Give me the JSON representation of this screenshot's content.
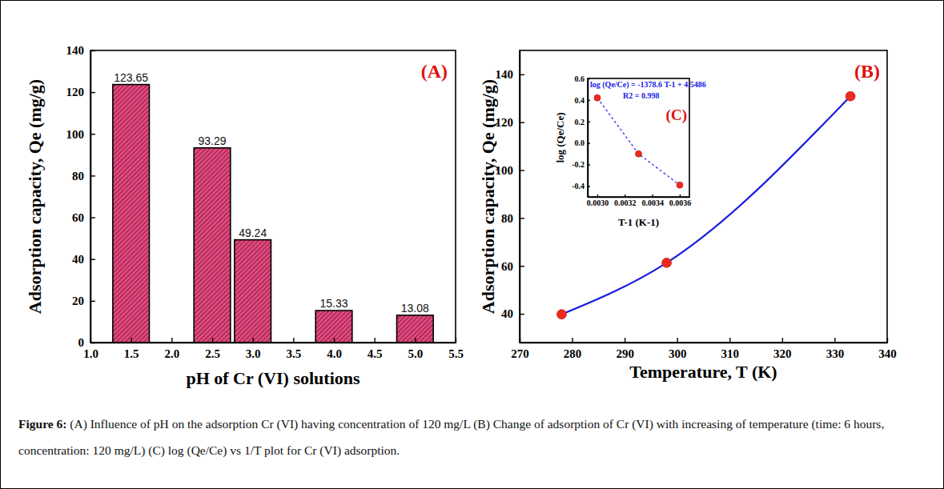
{
  "caption": {
    "label": "Figure 6:",
    "text": "(A) Influence of pH on the adsorption Cr (VI) having concentration of 120 mg/L (B) Change of adsorption of Cr (VI) with increasing of temperature (time: 6 hours, concentration: 120 mg/L) (C) log (Qe/Ce) vs 1/T plot for Cr (VI) adsorption."
  },
  "chart_data": [
    {
      "type": "bar",
      "title": "(A)",
      "x_label": "pH of Cr (VI) solutions",
      "y_label": "Adsorption capacity, Qe (mg/g)",
      "x": [
        1.5,
        2.5,
        3.0,
        4.0,
        5.0
      ],
      "values": [
        123.65,
        93.29,
        49.24,
        15.33,
        13.08
      ],
      "color": "#e8457e",
      "xlim": [
        1.0,
        5.5
      ],
      "xticks": [
        {
          "value": 1.0,
          "label": "1.0"
        },
        1.5,
        {
          "value": 2.0,
          "label": "2.0"
        },
        2.5,
        {
          "value": 3.0,
          "label": "3.0"
        },
        3.5,
        {
          "value": 4.0,
          "label": "4.0"
        },
        4.5,
        {
          "value": 5.0,
          "label": "5.0"
        },
        5.5
      ],
      "ylim": [
        0,
        140
      ],
      "yticks": [
        0,
        20,
        40,
        60,
        80,
        100,
        120,
        140
      ],
      "data_labels": true
    },
    {
      "type": "line",
      "title": "(B)",
      "x_label": "Temperature, T (K)",
      "y_label": "Adsorption capacity, Qe (mg/g)",
      "x": [
        278,
        298,
        333
      ],
      "values": [
        39.8,
        61.3,
        130.9
      ],
      "color": "#1c1ce0",
      "colors": [
        "#ee2a1e",
        "#ee2a1e",
        "#ee2a1e"
      ],
      "marker": "circle",
      "line_style": "solid",
      "xlim": [
        270,
        340
      ],
      "xticks": [
        270,
        280,
        290,
        300,
        310,
        320,
        330,
        340
      ],
      "ylim": [
        28,
        150
      ],
      "yticks": [
        40,
        60,
        80,
        100,
        120,
        140
      ]
    },
    {
      "type": "line",
      "title": "(C)",
      "x_label": "T-1 (K-1)",
      "y_label": "log (Qe/Ce)",
      "annotations": [
        "log (Qe/Ce) = -1378.6 T-1 + 4.5486",
        "R2 = 0.998"
      ],
      "x": [
        0.003,
        0.0033,
        0.0036
      ],
      "values": [
        0.42,
        -0.1,
        -0.39
      ],
      "color": "#3d3df0",
      "colors": [
        "#ee2a1e",
        "#ee2a1e",
        "#ee2a1e"
      ],
      "marker": "circle",
      "line_style": "dashed",
      "xlim": [
        0.00293,
        0.00367
      ],
      "xticks": [
        {
          "value": 0.003,
          "label": "0.0030"
        },
        {
          "value": 0.0032,
          "label": "0.0032"
        },
        {
          "value": 0.0034,
          "label": "0.0034"
        },
        {
          "value": 0.0036,
          "label": "0.0036"
        }
      ],
      "ylim": [
        -0.5,
        0.6
      ],
      "yticks": [
        -0.4,
        -0.2,
        {
          "value": 0,
          "label": "0.0"
        },
        0.2,
        0.4,
        0.6
      ]
    }
  ]
}
